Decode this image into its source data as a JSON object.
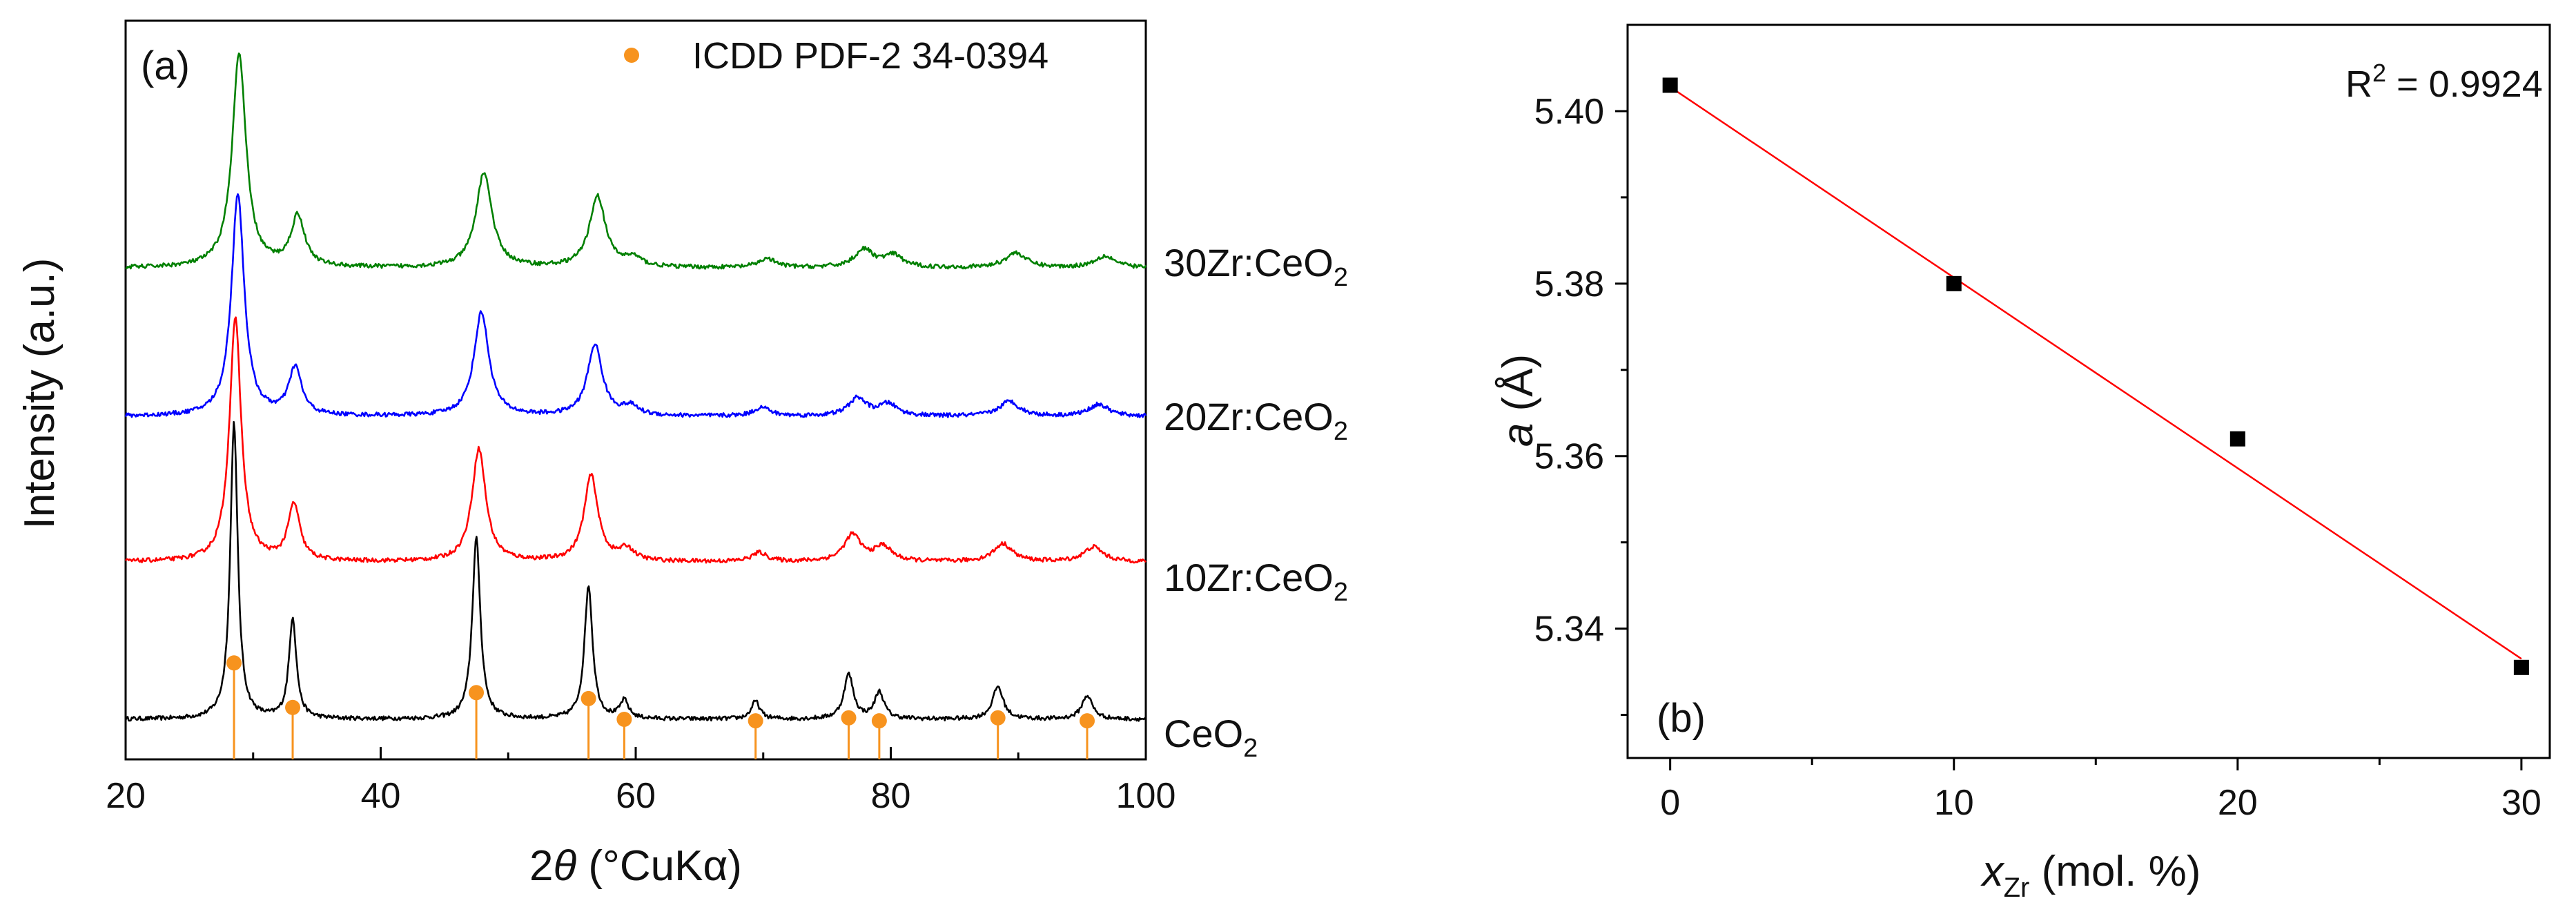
{
  "chart_data": [
    {
      "type": "line",
      "panel_label": "(a)",
      "xlabel": {
        "prefix": "2",
        "theta": "θ",
        "units": " (°CuKα)"
      },
      "ylabel": "Intensity (a.u.)",
      "xlim": [
        20,
        100
      ],
      "x_ticks": [
        20,
        40,
        60,
        80,
        100
      ],
      "y_ticks": [],
      "legend": {
        "marker_label": "ICDD PDF-2 34-0394",
        "color": "#f7931e",
        "position": "top-right"
      },
      "series": [
        {
          "name": "CeO2",
          "label": "CeO",
          "label_sub": "2",
          "color": "#000000",
          "offset": 0.0,
          "peaks": [
            {
              "x": 28.5,
              "h": 1.0,
              "w": 0.35
            },
            {
              "x": 33.1,
              "h": 0.34,
              "w": 0.35
            },
            {
              "x": 47.5,
              "h": 0.61,
              "w": 0.38
            },
            {
              "x": 56.3,
              "h": 0.45,
              "w": 0.38
            },
            {
              "x": 59.1,
              "h": 0.06,
              "w": 0.4
            },
            {
              "x": 69.4,
              "h": 0.06,
              "w": 0.4
            },
            {
              "x": 76.7,
              "h": 0.15,
              "w": 0.45
            },
            {
              "x": 79.1,
              "h": 0.09,
              "w": 0.45
            },
            {
              "x": 88.4,
              "h": 0.11,
              "w": 0.5
            },
            {
              "x": 95.4,
              "h": 0.08,
              "w": 0.5
            }
          ]
        },
        {
          "name": "10Zr:CeO2",
          "label": "10Zr:CeO",
          "label_sub": "2",
          "color": "#ff0000",
          "offset": 0.53,
          "peaks": [
            {
              "x": 28.6,
              "h": 0.82,
              "w": 0.55
            },
            {
              "x": 33.2,
              "h": 0.19,
              "w": 0.55
            },
            {
              "x": 47.7,
              "h": 0.38,
              "w": 0.65
            },
            {
              "x": 56.5,
              "h": 0.29,
              "w": 0.65
            },
            {
              "x": 59.3,
              "h": 0.04,
              "w": 0.7
            },
            {
              "x": 69.7,
              "h": 0.03,
              "w": 0.7
            },
            {
              "x": 77.0,
              "h": 0.09,
              "w": 0.8
            },
            {
              "x": 79.4,
              "h": 0.05,
              "w": 0.8
            },
            {
              "x": 88.8,
              "h": 0.06,
              "w": 0.9
            },
            {
              "x": 95.9,
              "h": 0.05,
              "w": 0.9
            }
          ]
        },
        {
          "name": "20Zr:CeO2",
          "label": "20Zr:CeO",
          "label_sub": "2",
          "color": "#0000ff",
          "offset": 1.02,
          "peaks": [
            {
              "x": 28.8,
              "h": 0.75,
              "w": 0.6
            },
            {
              "x": 33.3,
              "h": 0.16,
              "w": 0.6
            },
            {
              "x": 47.9,
              "h": 0.35,
              "w": 0.7
            },
            {
              "x": 56.8,
              "h": 0.24,
              "w": 0.7
            },
            {
              "x": 59.6,
              "h": 0.03,
              "w": 0.75
            },
            {
              "x": 69.9,
              "h": 0.03,
              "w": 0.75
            },
            {
              "x": 77.4,
              "h": 0.06,
              "w": 0.85
            },
            {
              "x": 79.8,
              "h": 0.04,
              "w": 0.85
            },
            {
              "x": 89.3,
              "h": 0.05,
              "w": 0.95
            },
            {
              "x": 96.3,
              "h": 0.04,
              "w": 0.95
            }
          ]
        },
        {
          "name": "30Zr:CeO2",
          "label": "30Zr:CeO",
          "label_sub": "2",
          "color": "#008000",
          "offset": 1.52,
          "peaks": [
            {
              "x": 28.9,
              "h": 0.72,
              "w": 0.65
            },
            {
              "x": 33.5,
              "h": 0.17,
              "w": 0.65
            },
            {
              "x": 48.1,
              "h": 0.32,
              "w": 0.75
            },
            {
              "x": 57.0,
              "h": 0.24,
              "w": 0.75
            },
            {
              "x": 59.8,
              "h": 0.03,
              "w": 0.8
            },
            {
              "x": 70.3,
              "h": 0.03,
              "w": 0.8
            },
            {
              "x": 77.9,
              "h": 0.06,
              "w": 0.9
            },
            {
              "x": 80.2,
              "h": 0.04,
              "w": 0.9
            },
            {
              "x": 89.8,
              "h": 0.05,
              "w": 1.0
            },
            {
              "x": 96.8,
              "h": 0.04,
              "w": 1.0
            }
          ]
        }
      ],
      "reference_markers": {
        "name": "ICDD PDF-2 34-0394",
        "color": "#f7931e",
        "points": [
          {
            "x": 28.5,
            "h": 0.19
          },
          {
            "x": 33.1,
            "h": 0.04
          },
          {
            "x": 47.5,
            "h": 0.09
          },
          {
            "x": 56.3,
            "h": 0.07
          },
          {
            "x": 59.1,
            "h": 0.0
          },
          {
            "x": 69.4,
            "h": -0.005
          },
          {
            "x": 76.7,
            "h": 0.005
          },
          {
            "x": 79.1,
            "h": -0.005
          },
          {
            "x": 88.4,
            "h": 0.005
          },
          {
            "x": 95.4,
            "h": -0.005
          }
        ]
      }
    },
    {
      "type": "scatter",
      "panel_label": "(b)",
      "xlabel": {
        "var": "x",
        "sub": "Zr",
        "units": " (mol. %)"
      },
      "ylabel": {
        "var": "a",
        "units": " (Å)"
      },
      "xlim": [
        -1.5,
        31
      ],
      "ylim": [
        5.325,
        5.41
      ],
      "x_ticks": [
        0,
        10,
        20,
        30
      ],
      "y_ticks": [
        5.34,
        5.36,
        5.38,
        5.4
      ],
      "y_tick_labels": [
        "5.34",
        "5.36",
        "5.38",
        "5.40"
      ],
      "points": [
        {
          "x": 0,
          "y": 5.403
        },
        {
          "x": 10,
          "y": 5.38
        },
        {
          "x": 20,
          "y": 5.362
        },
        {
          "x": 30,
          "y": 5.3355
        }
      ],
      "fit": {
        "x_start": 0,
        "y_start": 5.4028,
        "x_end": 30,
        "y_end": 5.3365,
        "color": "#ff0000"
      },
      "r2": {
        "prefix": "R",
        "sup": "2",
        "text": " = 0.9924"
      }
    }
  ]
}
